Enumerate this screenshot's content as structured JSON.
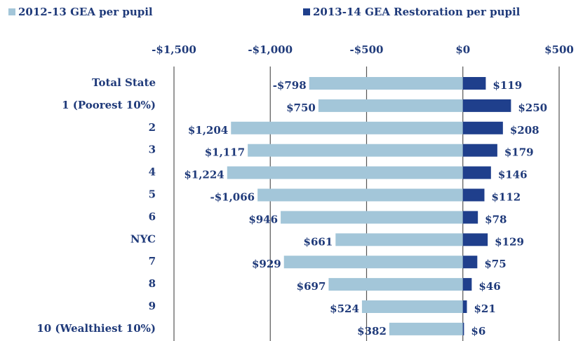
{
  "chart_data": {
    "type": "bar",
    "orientation": "horizontal",
    "categories": [
      "Total State",
      "1 (Poorest 10%)",
      "2",
      "3",
      "4",
      "5",
      "6",
      "NYC",
      "7",
      "8",
      "9",
      "10 (Wealthiest 10%)"
    ],
    "series": [
      {
        "name": "2012-13 GEA per pupil",
        "color": "#a3c6d9",
        "values": [
          -798,
          -750,
          -1204,
          -1117,
          -1224,
          -1066,
          -946,
          -661,
          -929,
          -697,
          -524,
          -382
        ],
        "value_labels": [
          "-$798",
          "$750",
          "$1,204",
          "$1,117",
          "$1,224",
          "-$1,066",
          "$946",
          "$661",
          "$929",
          "$697",
          "$524",
          "$382"
        ]
      },
      {
        "name": "2013-14 GEA Restoration per pupil",
        "color": "#1f3f8c",
        "values": [
          119,
          250,
          208,
          179,
          146,
          112,
          78,
          129,
          75,
          46,
          21,
          6
        ],
        "value_labels": [
          "$119",
          "$250",
          "$208",
          "$179",
          "$146",
          "$112",
          "$78",
          "$129",
          "$75",
          "$46",
          "$21",
          "$6"
        ]
      }
    ],
    "xlim": [
      -1500,
      500
    ],
    "xticks": [
      {
        "value": -1500,
        "label": "-$1,500"
      },
      {
        "value": -1000,
        "label": "-$1,000"
      },
      {
        "value": -500,
        "label": "-$500"
      },
      {
        "value": 0,
        "label": "$0"
      },
      {
        "value": 500,
        "label": "$500"
      }
    ],
    "grid": true,
    "legend": "top"
  }
}
